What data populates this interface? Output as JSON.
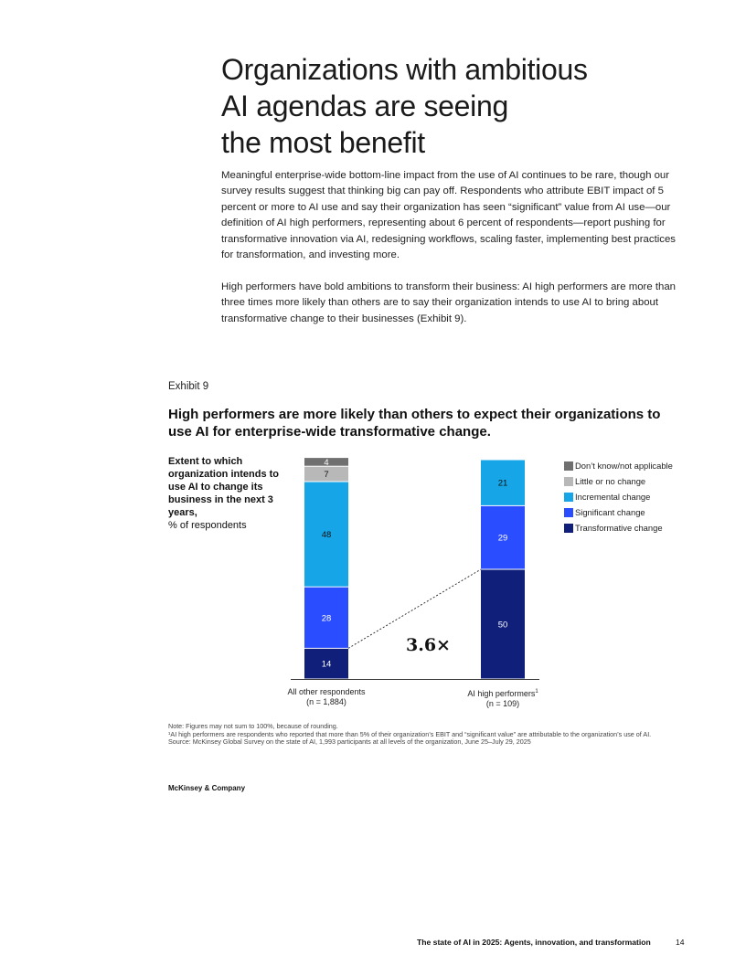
{
  "page": {
    "title_lines": [
      "Organizations with ambitious",
      "AI agendas are seeing",
      "the most benefit"
    ],
    "paragraphs": [
      "Meaningful enterprise-wide bottom-line impact from the use of AI continues to be rare, though our survey results suggest that thinking big can pay off. Respondents who attribute EBIT impact of 5 percent or more to AI use and say their organization has seen “significant” value from AI use—our definition of AI high performers, representing about 6 percent of respondents—report pushing for transformative innovation via AI, redesigning workflows, scaling faster, implementing best practices for transformation, and investing more.",
      "High performers have bold ambitions to transform their business: AI high performers are more than three times more likely than others are to say their organization intends to use AI to bring about transformative change to their businesses (Exhibit 9)."
    ]
  },
  "exhibit": {
    "label": "Exhibit 9",
    "title": "High performers are more likely than others to expect their organizations to use AI for enterprise-wide transformative change.",
    "y_desc_bold": "Extent to which organization intends to use AI to change its business in the next 3 years,",
    "y_desc_plain": "% of respondents",
    "multiplier": "3.6×",
    "category_labels": [
      {
        "name": "All other respondents",
        "sup": "",
        "n": "(n = 1,884)"
      },
      {
        "name": "AI high performers",
        "sup": "1",
        "n": "(n = 109)"
      }
    ],
    "notes": [
      "Note: Figures may not sum to 100%, because of rounding.",
      "¹AI high performers are respondents who reported that more than 5% of their organization’s EBIT and “significant value” are attributable to the organization’s use of AI.",
      "Source: McKinsey Global Survey on the state of AI, 1,993 participants at all levels of the organization, June 25–July 29, 2025"
    ]
  },
  "chart_data": {
    "type": "bar",
    "stacked": true,
    "categories": [
      "All other respondents",
      "AI high performers"
    ],
    "series": [
      {
        "name": "Transformative change",
        "color": "#0f1f7a",
        "values": [
          14,
          50
        ]
      },
      {
        "name": "Significant change",
        "color": "#2a4dff",
        "values": [
          28,
          29
        ]
      },
      {
        "name": "Incremental change",
        "color": "#16a6e8",
        "values": [
          48,
          21
        ]
      },
      {
        "name": "Little or no change",
        "color": "#b8b8b8",
        "values": [
          7,
          null
        ]
      },
      {
        "name": "Don’t know/not applicable",
        "color": "#707070",
        "values": [
          4,
          null
        ]
      }
    ],
    "legend_order": [
      "Don’t know/not applicable",
      "Little or no change",
      "Incremental change",
      "Significant change",
      "Transformative change"
    ],
    "legend_placement": "right",
    "grid": false,
    "ylim": [
      0,
      100
    ]
  },
  "footer": {
    "brand": "McKinsey & Company",
    "report_title": "The state of AI in 2025: Agents, innovation, and transformation",
    "page_number": "14"
  }
}
